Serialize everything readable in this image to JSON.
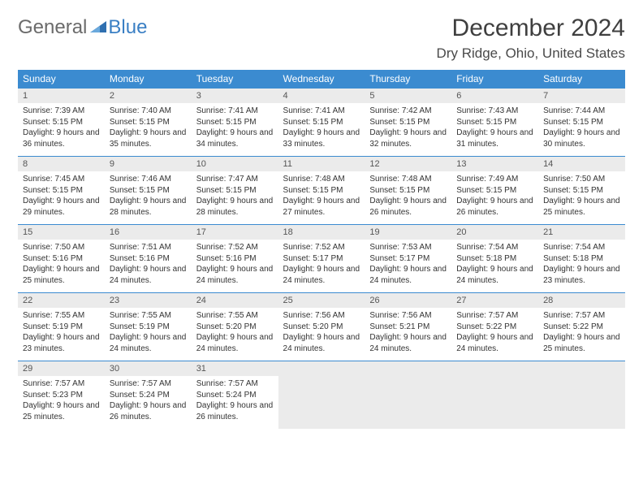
{
  "logo": {
    "word1": "General",
    "word2": "Blue"
  },
  "header": {
    "title": "December 2024",
    "location": "Dry Ridge, Ohio, United States"
  },
  "colors": {
    "header_bg": "#3b8bd0",
    "header_text": "#ffffff",
    "daynum_bg": "#ebebeb",
    "border": "#3b8bd0",
    "body_text": "#333333",
    "logo_gray": "#6b6b6b",
    "logo_blue": "#3a7fc4"
  },
  "daysOfWeek": [
    "Sunday",
    "Monday",
    "Tuesday",
    "Wednesday",
    "Thursday",
    "Friday",
    "Saturday"
  ],
  "weeks": [
    [
      {
        "n": "1",
        "sr": "7:39 AM",
        "ss": "5:15 PM",
        "dl": "9 hours and 36 minutes."
      },
      {
        "n": "2",
        "sr": "7:40 AM",
        "ss": "5:15 PM",
        "dl": "9 hours and 35 minutes."
      },
      {
        "n": "3",
        "sr": "7:41 AM",
        "ss": "5:15 PM",
        "dl": "9 hours and 34 minutes."
      },
      {
        "n": "4",
        "sr": "7:41 AM",
        "ss": "5:15 PM",
        "dl": "9 hours and 33 minutes."
      },
      {
        "n": "5",
        "sr": "7:42 AM",
        "ss": "5:15 PM",
        "dl": "9 hours and 32 minutes."
      },
      {
        "n": "6",
        "sr": "7:43 AM",
        "ss": "5:15 PM",
        "dl": "9 hours and 31 minutes."
      },
      {
        "n": "7",
        "sr": "7:44 AM",
        "ss": "5:15 PM",
        "dl": "9 hours and 30 minutes."
      }
    ],
    [
      {
        "n": "8",
        "sr": "7:45 AM",
        "ss": "5:15 PM",
        "dl": "9 hours and 29 minutes."
      },
      {
        "n": "9",
        "sr": "7:46 AM",
        "ss": "5:15 PM",
        "dl": "9 hours and 28 minutes."
      },
      {
        "n": "10",
        "sr": "7:47 AM",
        "ss": "5:15 PM",
        "dl": "9 hours and 28 minutes."
      },
      {
        "n": "11",
        "sr": "7:48 AM",
        "ss": "5:15 PM",
        "dl": "9 hours and 27 minutes."
      },
      {
        "n": "12",
        "sr": "7:48 AM",
        "ss": "5:15 PM",
        "dl": "9 hours and 26 minutes."
      },
      {
        "n": "13",
        "sr": "7:49 AM",
        "ss": "5:15 PM",
        "dl": "9 hours and 26 minutes."
      },
      {
        "n": "14",
        "sr": "7:50 AM",
        "ss": "5:15 PM",
        "dl": "9 hours and 25 minutes."
      }
    ],
    [
      {
        "n": "15",
        "sr": "7:50 AM",
        "ss": "5:16 PM",
        "dl": "9 hours and 25 minutes."
      },
      {
        "n": "16",
        "sr": "7:51 AM",
        "ss": "5:16 PM",
        "dl": "9 hours and 24 minutes."
      },
      {
        "n": "17",
        "sr": "7:52 AM",
        "ss": "5:16 PM",
        "dl": "9 hours and 24 minutes."
      },
      {
        "n": "18",
        "sr": "7:52 AM",
        "ss": "5:17 PM",
        "dl": "9 hours and 24 minutes."
      },
      {
        "n": "19",
        "sr": "7:53 AM",
        "ss": "5:17 PM",
        "dl": "9 hours and 24 minutes."
      },
      {
        "n": "20",
        "sr": "7:54 AM",
        "ss": "5:18 PM",
        "dl": "9 hours and 24 minutes."
      },
      {
        "n": "21",
        "sr": "7:54 AM",
        "ss": "5:18 PM",
        "dl": "9 hours and 23 minutes."
      }
    ],
    [
      {
        "n": "22",
        "sr": "7:55 AM",
        "ss": "5:19 PM",
        "dl": "9 hours and 23 minutes."
      },
      {
        "n": "23",
        "sr": "7:55 AM",
        "ss": "5:19 PM",
        "dl": "9 hours and 24 minutes."
      },
      {
        "n": "24",
        "sr": "7:55 AM",
        "ss": "5:20 PM",
        "dl": "9 hours and 24 minutes."
      },
      {
        "n": "25",
        "sr": "7:56 AM",
        "ss": "5:20 PM",
        "dl": "9 hours and 24 minutes."
      },
      {
        "n": "26",
        "sr": "7:56 AM",
        "ss": "5:21 PM",
        "dl": "9 hours and 24 minutes."
      },
      {
        "n": "27",
        "sr": "7:57 AM",
        "ss": "5:22 PM",
        "dl": "9 hours and 24 minutes."
      },
      {
        "n": "28",
        "sr": "7:57 AM",
        "ss": "5:22 PM",
        "dl": "9 hours and 25 minutes."
      }
    ],
    [
      {
        "n": "29",
        "sr": "7:57 AM",
        "ss": "5:23 PM",
        "dl": "9 hours and 25 minutes."
      },
      {
        "n": "30",
        "sr": "7:57 AM",
        "ss": "5:24 PM",
        "dl": "9 hours and 26 minutes."
      },
      {
        "n": "31",
        "sr": "7:57 AM",
        "ss": "5:24 PM",
        "dl": "9 hours and 26 minutes."
      },
      null,
      null,
      null,
      null
    ]
  ],
  "labels": {
    "sunrise": "Sunrise: ",
    "sunset": "Sunset: ",
    "daylight": "Daylight: "
  }
}
